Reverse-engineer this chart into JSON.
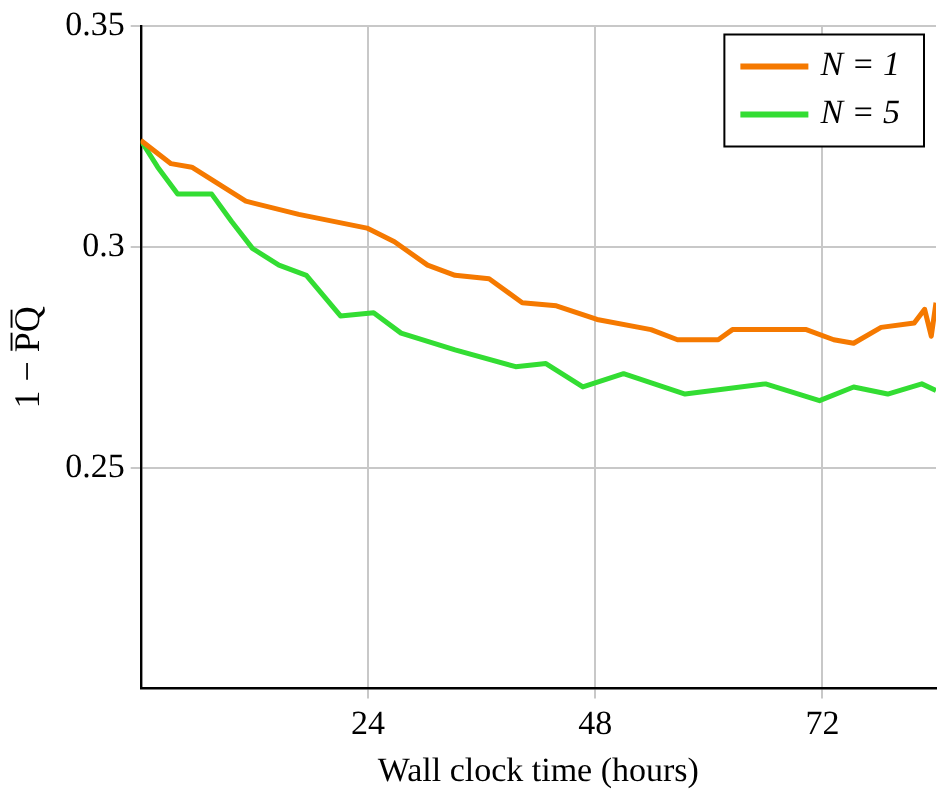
{
  "chart_data": {
    "type": "line",
    "xlabel": "Wall clock time (hours)",
    "ylabel": "1 − P̅Q̅",
    "xlim": [
      0,
      84
    ],
    "xticks": [
      24,
      48,
      72
    ],
    "ylim": [
      0.2,
      0.35
    ],
    "yticks": [
      0.25,
      0.3,
      0.35
    ],
    "grid": true,
    "legend": "top right",
    "marker": "none",
    "line_style": "solid",
    "series": [
      {
        "name": "N = 1",
        "color": "#f57900",
        "x": [
          0,
          3.2,
          5.4,
          11.1,
          16.7,
          23.9,
          26.8,
          30.3,
          33.2,
          36.8,
          40.3,
          43.9,
          48.2,
          53.9,
          56.7,
          61,
          62.5,
          70.3,
          73.2,
          75.3,
          78.2,
          81.7,
          82.8,
          83.5,
          84
        ],
        "values": [
          0.3242,
          0.3189,
          0.3181,
          0.3104,
          0.3074,
          0.3043,
          0.3012,
          0.2959,
          0.2936,
          0.2928,
          0.2874,
          0.2867,
          0.2836,
          0.2813,
          0.279,
          0.279,
          0.2813,
          0.2813,
          0.279,
          0.2782,
          0.2818,
          0.2828,
          0.2859,
          0.2798,
          0.2874
        ]
      },
      {
        "name": "N = 5",
        "color": "#33dd33",
        "x": [
          0,
          1.8,
          3.9,
          7.5,
          9.6,
          11.8,
          14.6,
          17.5,
          21.1,
          24.6,
          27.5,
          33.2,
          39.6,
          42.8,
          46.7,
          51,
          57.5,
          66,
          71.7,
          75.3,
          78.9,
          82.5,
          84
        ],
        "values": [
          0.3242,
          0.3181,
          0.312,
          0.312,
          0.3058,
          0.2997,
          0.2959,
          0.2936,
          0.2844,
          0.2851,
          0.2805,
          0.2767,
          0.2729,
          0.2736,
          0.2683,
          0.2713,
          0.2667,
          0.269,
          0.2652,
          0.2683,
          0.2667,
          0.269,
          0.2675
        ]
      }
    ]
  }
}
